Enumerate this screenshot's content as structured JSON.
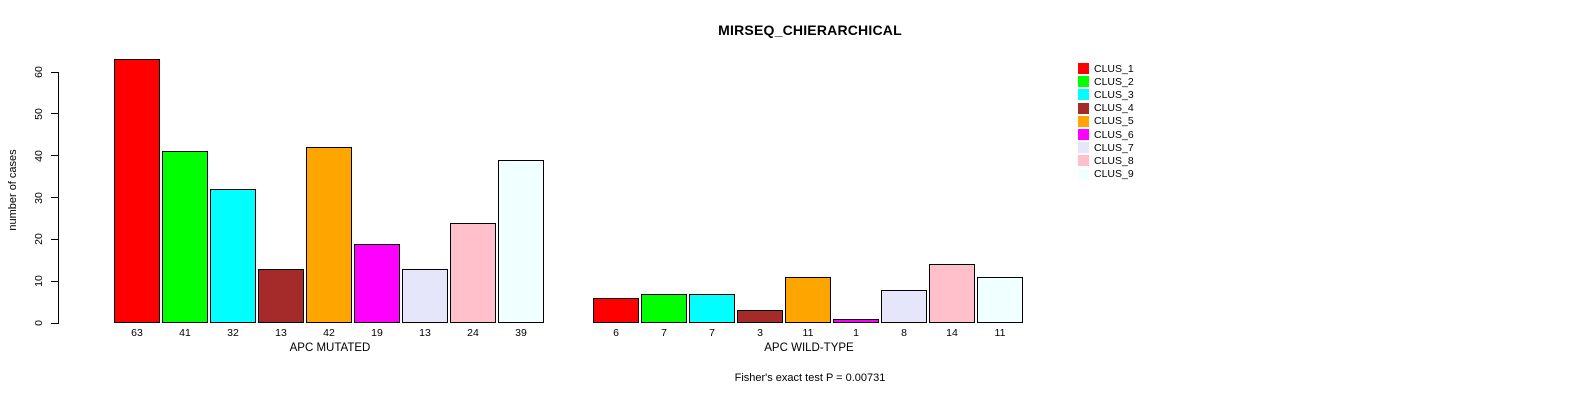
{
  "title": "MIRSEQ_CHIERARCHICAL",
  "footnote": "Fisher's exact test P = 0.00731",
  "y_axis": {
    "label": "number of cases",
    "ticks": [
      0,
      10,
      20,
      30,
      40,
      50,
      60
    ]
  },
  "legend": {
    "position": "top-right",
    "items": [
      {
        "label": "CLUS_1",
        "color": "#FF0000"
      },
      {
        "label": "CLUS_2",
        "color": "#00FF00"
      },
      {
        "label": "CLUS_3",
        "color": "#00FFFF"
      },
      {
        "label": "CLUS_4",
        "color": "#A52A2A"
      },
      {
        "label": "CLUS_5",
        "color": "#FFA500"
      },
      {
        "label": "CLUS_6",
        "color": "#FF00FF"
      },
      {
        "label": "CLUS_7",
        "color": "#E6E6FA"
      },
      {
        "label": "CLUS_8",
        "color": "#FFC0CB"
      },
      {
        "label": "CLUS_9",
        "color": "#F0FFFF"
      }
    ]
  },
  "chart_data": [
    {
      "type": "bar",
      "title": "MIRSEQ_CHIERARCHICAL",
      "xlabel": "APC MUTATED",
      "ylabel": "number of cases",
      "categories": [
        "CLUS_1",
        "CLUS_2",
        "CLUS_3",
        "CLUS_4",
        "CLUS_5",
        "CLUS_6",
        "CLUS_7",
        "CLUS_8",
        "CLUS_9"
      ],
      "values": [
        63,
        41,
        32,
        13,
        42,
        19,
        13,
        24,
        39
      ],
      "bar_colors": [
        "#FF0000",
        "#00FF00",
        "#00FFFF",
        "#A52A2A",
        "#FFA500",
        "#FF00FF",
        "#E6E6FA",
        "#FFC0CB",
        "#F0FFFF"
      ],
      "ylim": [
        0,
        63
      ],
      "grid": false,
      "legend_position": "top-right"
    },
    {
      "type": "bar",
      "title": "MIRSEQ_CHIERARCHICAL",
      "xlabel": "APC WILD-TYPE",
      "ylabel": "number of cases",
      "categories": [
        "CLUS_1",
        "CLUS_2",
        "CLUS_3",
        "CLUS_4",
        "CLUS_5",
        "CLUS_6",
        "CLUS_7",
        "CLUS_8",
        "CLUS_9"
      ],
      "values": [
        6,
        7,
        7,
        3,
        11,
        1,
        8,
        14,
        11
      ],
      "bar_colors": [
        "#FF0000",
        "#00FF00",
        "#00FFFF",
        "#A52A2A",
        "#FFA500",
        "#FF00FF",
        "#E6E6FA",
        "#FFC0CB",
        "#F0FFFF"
      ],
      "ylim": [
        0,
        63
      ],
      "grid": false,
      "legend_position": "none"
    }
  ]
}
